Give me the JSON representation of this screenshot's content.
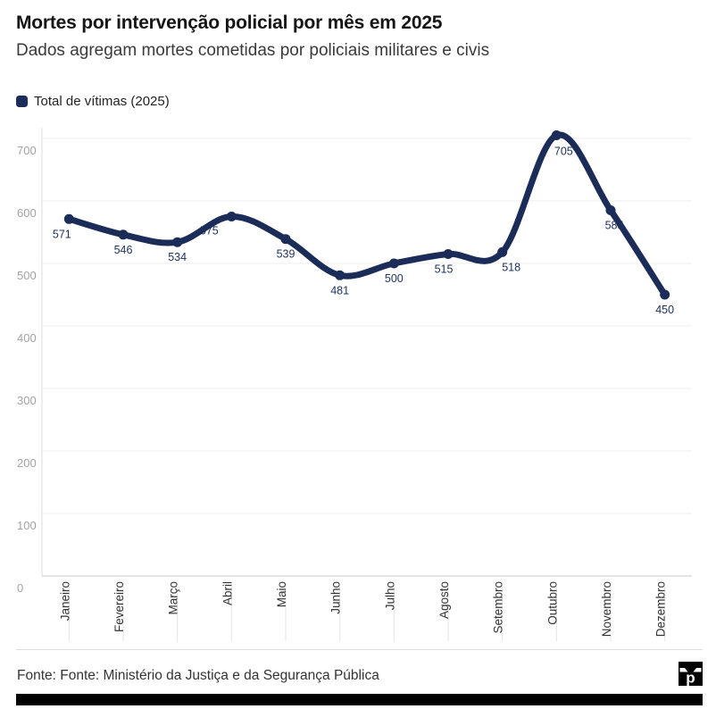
{
  "header": {
    "title": "Mortes por intervenção policial por mês em 2025",
    "subtitle": "Dados agregam mortes cometidas por policiais militares e civis"
  },
  "legend": {
    "label": "Total de vítimas (2025)",
    "color": "#1b2c58"
  },
  "chart_data": {
    "type": "line",
    "title": "Mortes por intervenção policial por mês em 2025",
    "categories": [
      "Janeiro",
      "Fevereiro",
      "Março",
      "Abril",
      "Maio",
      "Junho",
      "Julho",
      "Agosto",
      "Setembro",
      "Outubro",
      "Novembro",
      "Dezembro"
    ],
    "series": [
      {
        "name": "Total de vítimas (2025)",
        "values": [
          571,
          546,
          534,
          575,
          539,
          481,
          500,
          515,
          518,
          705,
          585,
          450
        ]
      }
    ],
    "xlabel": "",
    "ylabel": "",
    "ylim": [
      0,
      700
    ],
    "yticks": [
      0,
      100,
      200,
      300,
      400,
      500,
      600,
      700
    ],
    "grid": true,
    "smooth": true,
    "data_labels": true,
    "legend_position": "top-left",
    "line_color": "#1b2c58",
    "marker_color": "#1b2c58",
    "label_color": "#1c3059",
    "axis_text_color": "#a3a3a3",
    "category_text_color": "#333333"
  },
  "footer": {
    "source": "Fonte: Fonte: Ministério da Justiça e da Segurança Pública",
    "logo_letter": "p"
  }
}
